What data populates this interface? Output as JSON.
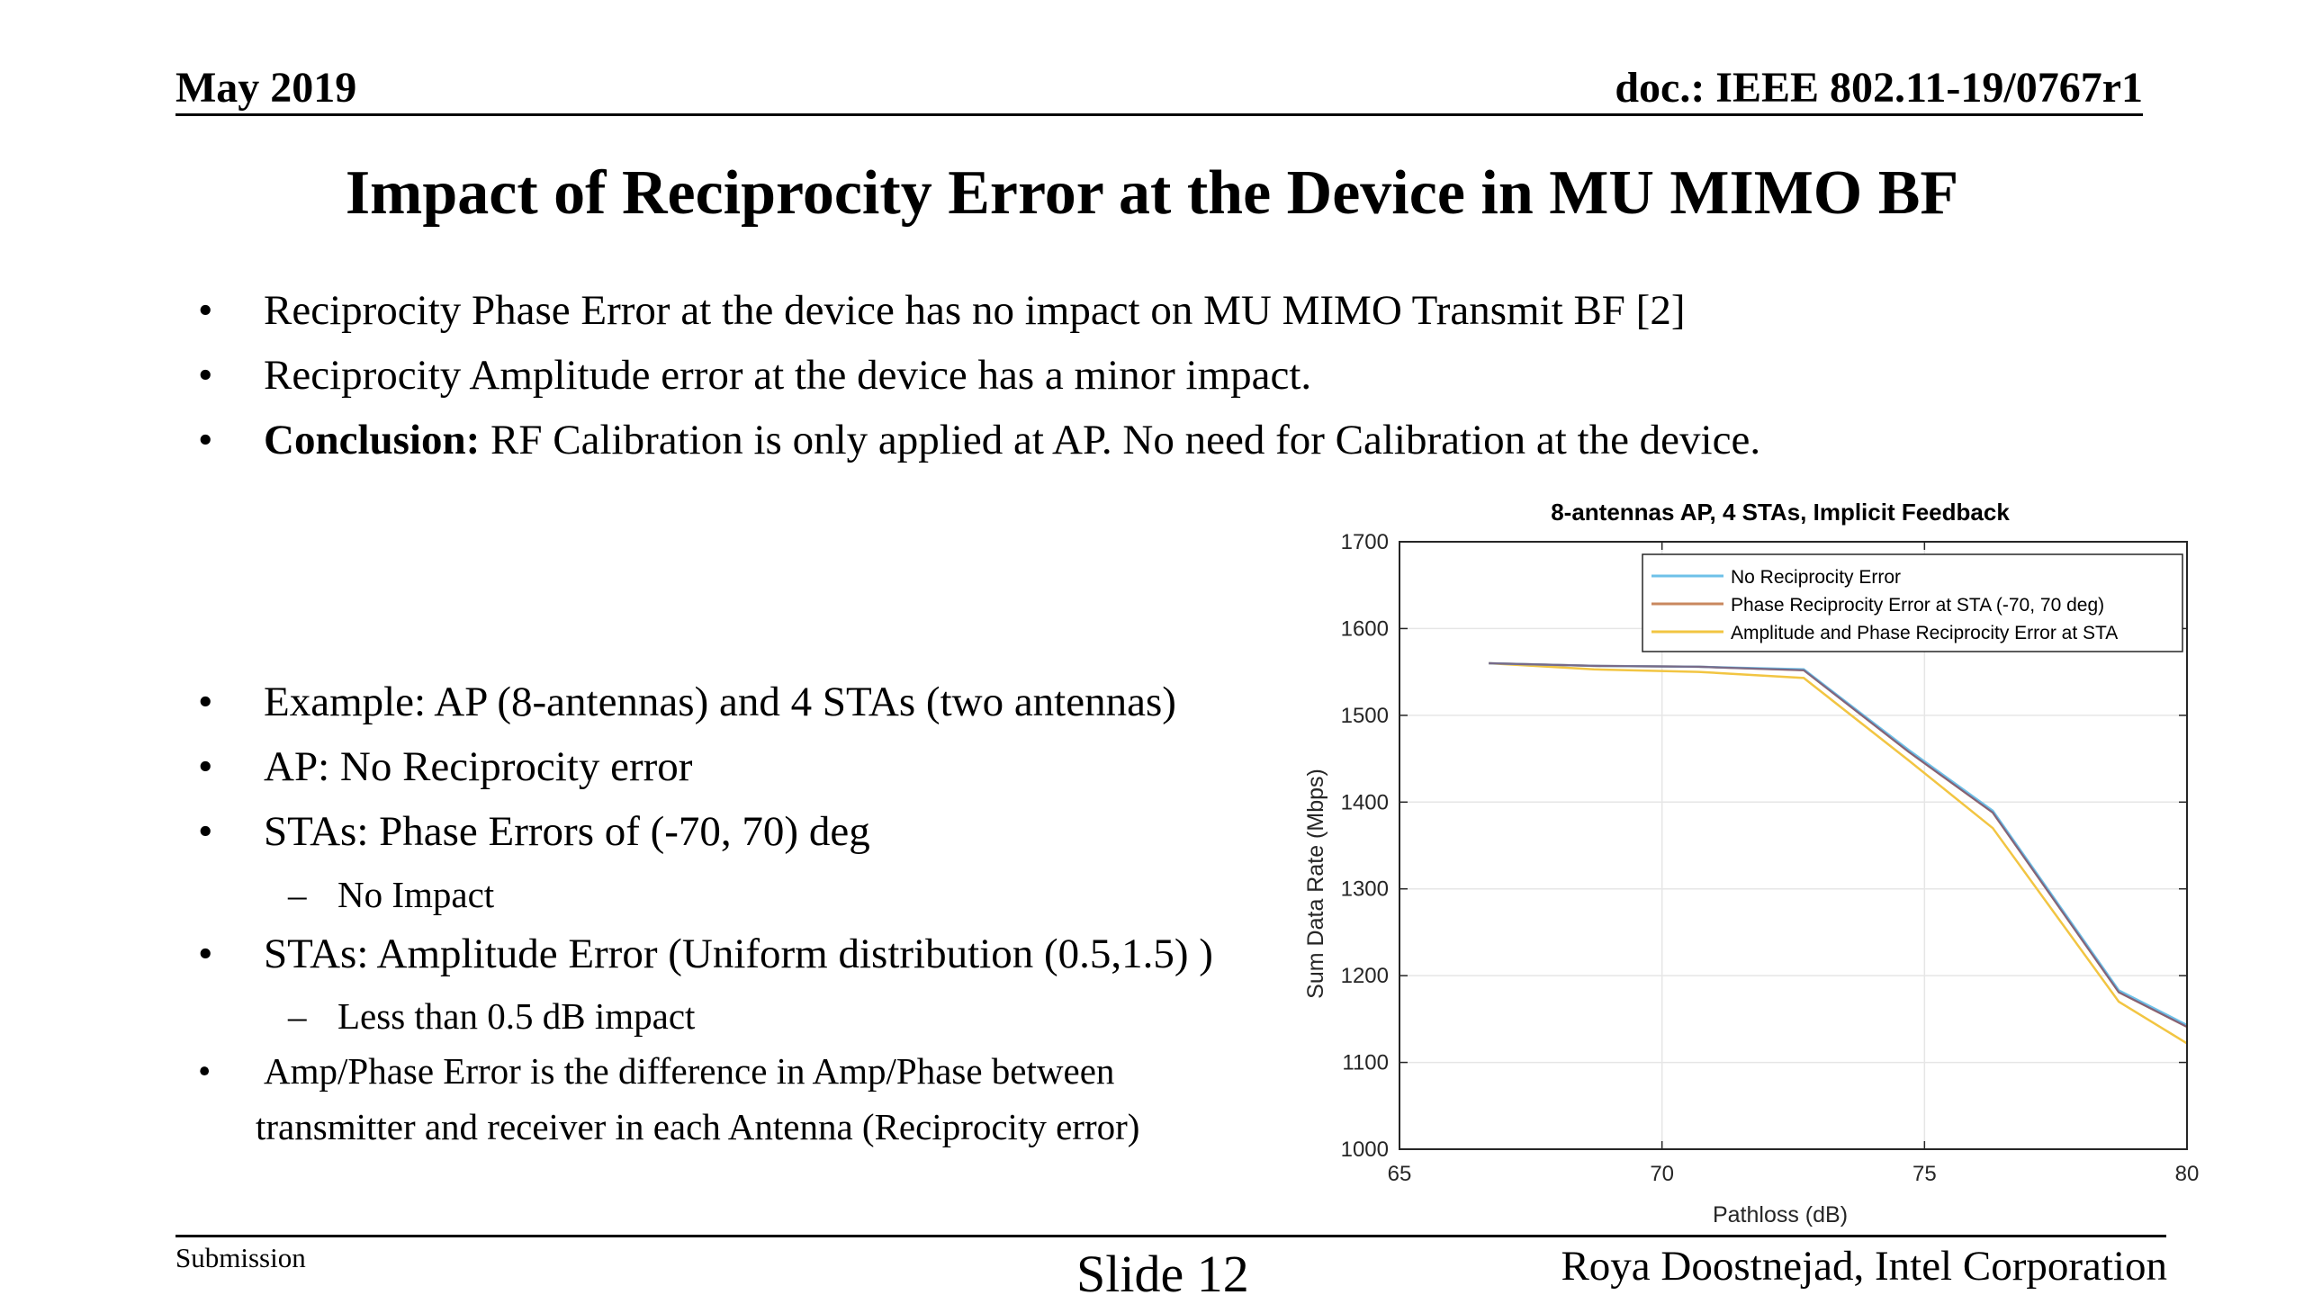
{
  "header": {
    "date": "May 2019",
    "doc": "doc.: IEEE 802.11-19/0767r1"
  },
  "title": "Impact of Reciprocity Error at the Device in MU MIMO BF",
  "bullets_top": [
    "Reciprocity Phase Error at the device has no impact on MU MIMO Transmit BF [2]",
    "Reciprocity Amplitude error at the device has a minor impact.",
    {
      "bold": "Conclusion:",
      "rest": " RF Calibration is only applied at AP. No need for Calibration at the device."
    }
  ],
  "bullets_example": {
    "b1": "Example: AP (8-antennas) and 4 STAs (two antennas)",
    "b2": "AP: No Reciprocity error",
    "b3": "STAs: Phase Errors of (-70, 70) deg",
    "s1": "No Impact",
    "b4": "STAs: Amplitude Error (Uniform distribution (0.5,1.5) )",
    "s2": "Less than 0.5 dB impact",
    "b5_line1": "Amp/Phase Error is the difference in Amp/Phase between",
    "b5_line2": "transmitter and receiver in each Antenna (Reciprocity error)"
  },
  "symbols": {
    "bullet": "•",
    "dash": "–"
  },
  "footer": {
    "left": "Submission",
    "middle": "Slide 12",
    "right": "Roya Doostnejad, Intel Corporation"
  },
  "chart_data": {
    "type": "line",
    "title": "8-antennas AP, 4 STAs, Implicit Feedback",
    "xlabel": "Pathloss (dB)",
    "ylabel": "Sum Data Rate (Mbps)",
    "xlim": [
      65,
      80
    ],
    "ylim": [
      1000,
      1700
    ],
    "xticks": [
      65,
      70,
      75,
      80
    ],
    "yticks": [
      1000,
      1100,
      1200,
      1300,
      1400,
      1500,
      1600,
      1700
    ],
    "grid": true,
    "legend": "top-right",
    "series": [
      {
        "name": "No Reciprocity Error",
        "color": "#6ec1e8",
        "x": [
          66.7,
          68.7,
          70.7,
          72.7,
          74.7,
          76.3,
          78.7,
          80
        ],
        "y": [
          1560,
          1557,
          1556,
          1553,
          1460,
          1390,
          1183,
          1143
        ]
      },
      {
        "name": "Phase Reciprocity Error at STA (-70, 70 deg)",
        "color": "#c9885f",
        "x": [
          66.7,
          68.7,
          70.7,
          72.7,
          74.7,
          76.3,
          78.7,
          80
        ],
        "y": [
          1560,
          1557,
          1556,
          1552,
          1458,
          1388,
          1181,
          1141
        ]
      },
      {
        "name": "Amplitude and Phase Reciprocity Error at STA",
        "color": "#f2c542",
        "x": [
          66.7,
          68.7,
          70.7,
          72.7,
          74.7,
          76.3,
          78.7,
          80
        ],
        "y": [
          1560,
          1553,
          1550,
          1543,
          1448,
          1370,
          1170,
          1122
        ]
      }
    ],
    "overlay_color": "#7a5a78"
  }
}
